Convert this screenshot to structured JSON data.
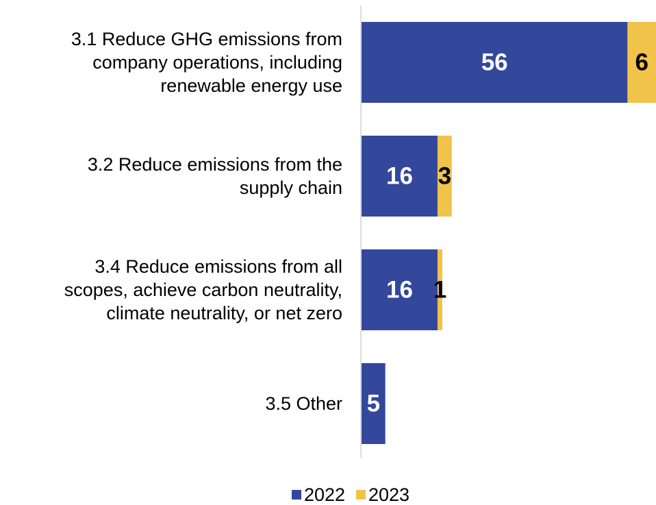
{
  "chart_data": {
    "type": "bar",
    "orientation": "horizontal",
    "stacked": true,
    "categories": [
      [
        "3.1 Reduce GHG emissions from",
        "company operations, including",
        "renewable energy use"
      ],
      [
        "3.2 Reduce emissions from the",
        "supply chain"
      ],
      [
        "3.4 Reduce emissions from all",
        "scopes, achieve carbon neutrality,",
        "climate neutrality, or net zero"
      ],
      [
        "3.5 Other"
      ]
    ],
    "series": [
      {
        "name": "2022",
        "color": "#33479b",
        "label_color": "#ffffff",
        "values": [
          56,
          16,
          16,
          5
        ]
      },
      {
        "name": "2023",
        "color": "#f2c34a",
        "label_color": "#000000",
        "values": [
          6,
          3,
          1,
          null
        ]
      }
    ],
    "xlim": [
      0,
      62
    ],
    "grid": false,
    "legend": "bottom"
  }
}
